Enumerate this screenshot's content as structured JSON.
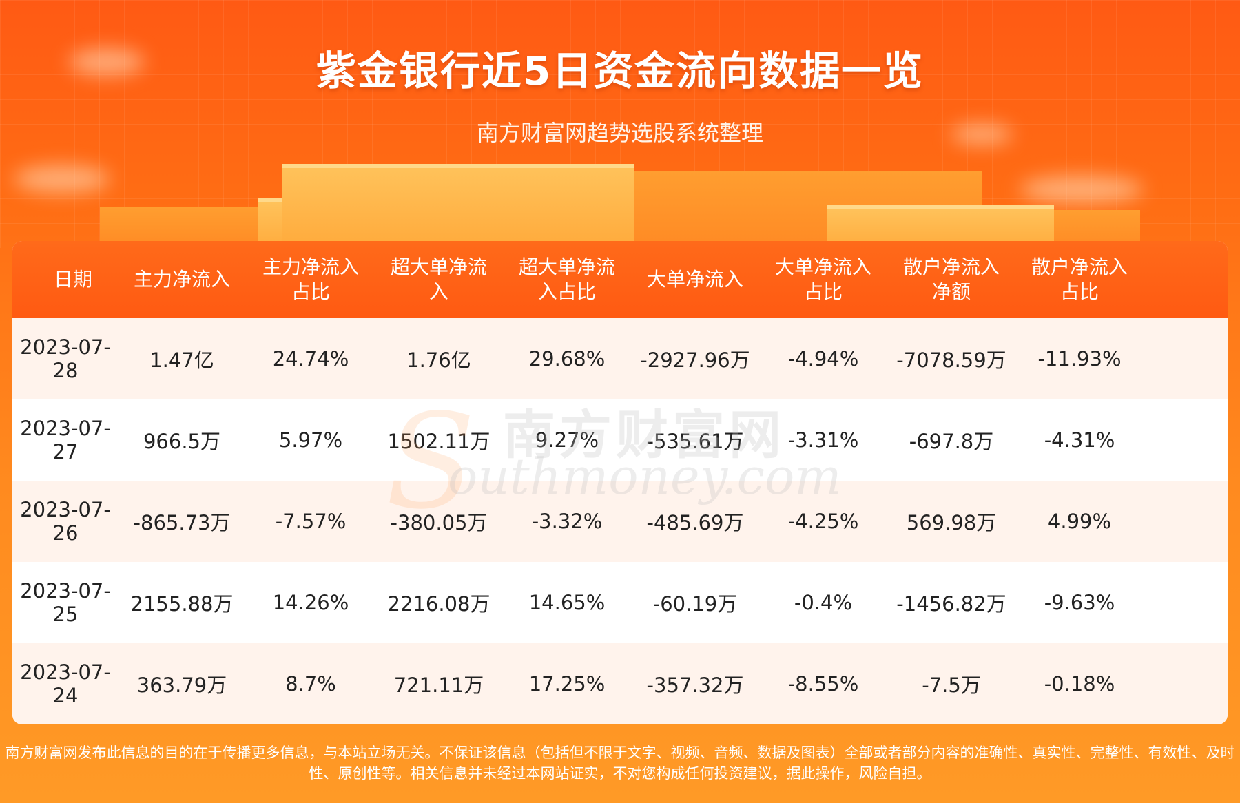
{
  "header": {
    "title": "紫金银行近5日资金流向数据一览",
    "subtitle": "南方财富网趋势选股系统整理"
  },
  "table": {
    "columns": [
      "日期",
      "主力净流入",
      "主力净流入\n占比",
      "超大单净流\n入",
      "超大单净流\n入占比",
      "大单净流入",
      "大单净流入\n占比",
      "散户净流入\n净额",
      "散户净流入\n占比"
    ],
    "rows": [
      [
        "2023-07-28",
        "1.47亿",
        "24.74%",
        "1.76亿",
        "29.68%",
        "-2927.96万",
        "-4.94%",
        "-7078.59万",
        "-11.93%"
      ],
      [
        "2023-07-27",
        "966.5万",
        "5.97%",
        "1502.11万",
        "9.27%",
        "-535.61万",
        "-3.31%",
        "-697.8万",
        "-4.31%"
      ],
      [
        "2023-07-26",
        "-865.73万",
        "-7.57%",
        "-380.05万",
        "-3.32%",
        "-485.69万",
        "-4.25%",
        "569.98万",
        "4.99%"
      ],
      [
        "2023-07-25",
        "2155.88万",
        "14.26%",
        "2216.08万",
        "14.65%",
        "-60.19万",
        "-0.4%",
        "-1456.82万",
        "-9.63%"
      ],
      [
        "2023-07-24",
        "363.79万",
        "8.7%",
        "721.11万",
        "17.25%",
        "-357.32万",
        "-8.55%",
        "-7.5万",
        "-0.18%"
      ]
    ]
  },
  "watermark": {
    "cn": "南方财富网",
    "en": "outhmoney.com",
    "s": "S"
  },
  "disclaimer": "南方财富网发布此信息的目的在于传播更多信息，与本站立场无关。不保证该信息（包括但不限于文字、视频、音频、数据及图表）全部或者部分内容的准确性、真实性、完整性、有效性、及时性、原创性等。相关信息并未经过本网站证实，不对您构成任何投资建议，据此操作，风险自担。",
  "colors": {
    "header_bg": "#ff5a12",
    "row_alt_bg": "#fff3ec",
    "page_bg_top": "#ff5a14",
    "page_bg_bottom": "#ff9a26"
  }
}
